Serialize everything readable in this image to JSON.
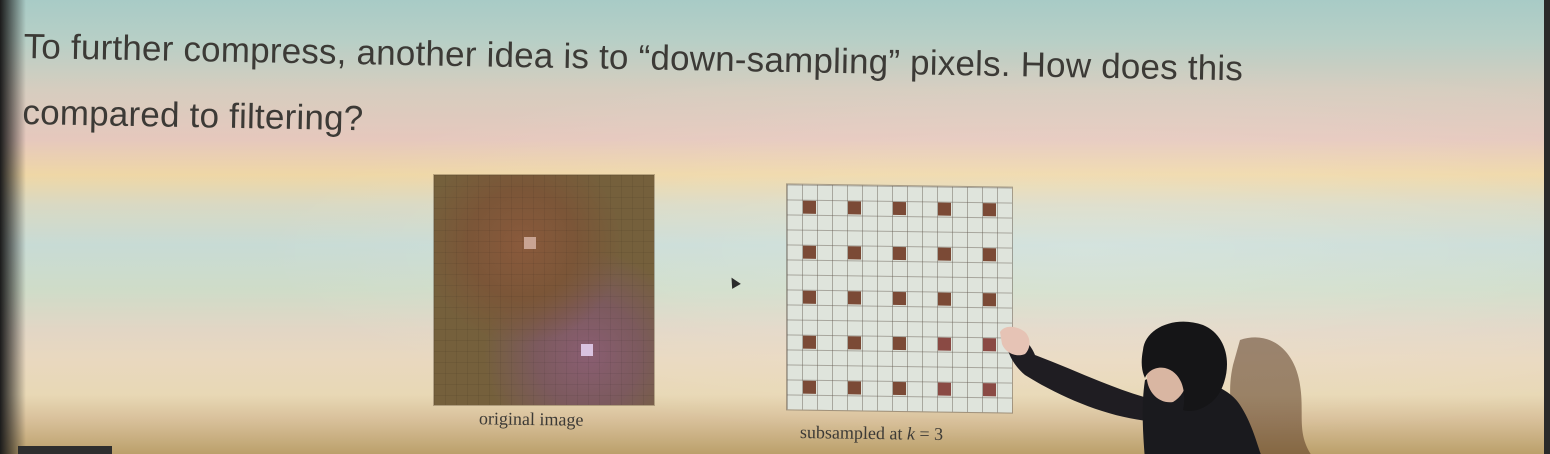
{
  "slide": {
    "line1": "To further compress, another idea is to “down-sampling” pixels. How does this",
    "line2": "compared to filtering?"
  },
  "figures": {
    "original_caption": "original image",
    "subsampled_caption_prefix": "subsampled at ",
    "subsampled_caption_var": "k",
    "subsampled_caption_suffix": " = 3",
    "subsample_factor": 3,
    "grid_cells": 15
  },
  "colors": {
    "sample_dot": "#7b4a36",
    "sample_dot_alt": "#8a4a44",
    "bright_pixel_1": "#c9a493",
    "bright_pixel_2": "#d9c3e0"
  }
}
